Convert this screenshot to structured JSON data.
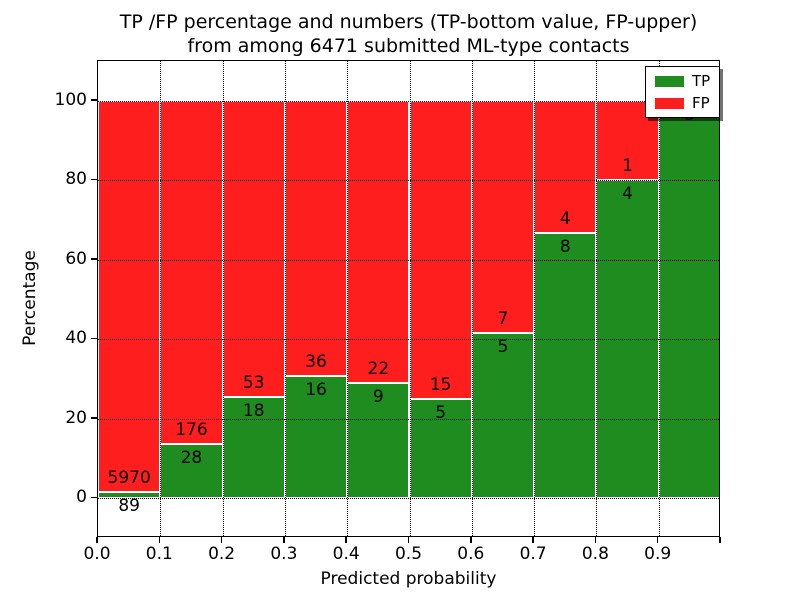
{
  "figure": {
    "title_line1": "TP /FP percentage and numbers (TP-bottom value, FP-upper)",
    "title_line2": "from among 6471 submitted ML-type contacts"
  },
  "chart_data": {
    "type": "bar",
    "variant": "stacked-percentage-histogram",
    "title": "TP /FP percentage and numbers (TP-bottom value, FP-upper)\nfrom among 6471 submitted ML-type contacts",
    "xlabel": "Predicted probability",
    "ylabel": "Percentage",
    "total_contacts": 6471,
    "xlim": [
      0.0,
      1.0
    ],
    "ylim": [
      -10,
      110
    ],
    "x_tick_values": [
      0.0,
      0.1,
      0.2,
      0.3,
      0.4,
      0.5,
      0.6,
      0.7,
      0.8,
      0.9
    ],
    "x_tick_labels": [
      "0.0",
      "0.1",
      "0.2",
      "0.3",
      "0.4",
      "0.5",
      "0.6",
      "0.7",
      "0.8",
      "0.9"
    ],
    "y_tick_values": [
      0,
      20,
      40,
      60,
      80,
      100
    ],
    "grid": "dotted",
    "grid_color": "#000000",
    "legend": {
      "position": "upper right",
      "entries": [
        {
          "label": "TP",
          "color": "#1e8c1e"
        },
        {
          "label": "FP",
          "color": "#ff1e1e"
        }
      ]
    },
    "bins": [
      {
        "range": [
          0.0,
          0.1
        ],
        "tp": 89,
        "fp": 5970,
        "tp_percent": 1.47
      },
      {
        "range": [
          0.1,
          0.2
        ],
        "tp": 28,
        "fp": 176,
        "tp_percent": 13.73
      },
      {
        "range": [
          0.2,
          0.3
        ],
        "tp": 18,
        "fp": 53,
        "tp_percent": 25.35
      },
      {
        "range": [
          0.3,
          0.4
        ],
        "tp": 16,
        "fp": 36,
        "tp_percent": 30.77
      },
      {
        "range": [
          0.4,
          0.5
        ],
        "tp": 9,
        "fp": 22,
        "tp_percent": 29.03
      },
      {
        "range": [
          0.5,
          0.6
        ],
        "tp": 5,
        "fp": 15,
        "tp_percent": 25.0
      },
      {
        "range": [
          0.6,
          0.7
        ],
        "tp": 5,
        "fp": 7,
        "tp_percent": 41.67
      },
      {
        "range": [
          0.7,
          0.8
        ],
        "tp": 8,
        "fp": 4,
        "tp_percent": 66.67
      },
      {
        "range": [
          0.8,
          0.9
        ],
        "tp": 4,
        "fp": 1,
        "tp_percent": 80.0
      },
      {
        "range": [
          0.9,
          1.0
        ],
        "tp": 5,
        "fp": 0,
        "tp_percent": 100.0
      }
    ]
  },
  "colors": {
    "tp": "#1e8c1e",
    "fp": "#ff1e1e",
    "bar_edge": "#ffffff",
    "axes": "#000000",
    "background": "#ffffff"
  }
}
